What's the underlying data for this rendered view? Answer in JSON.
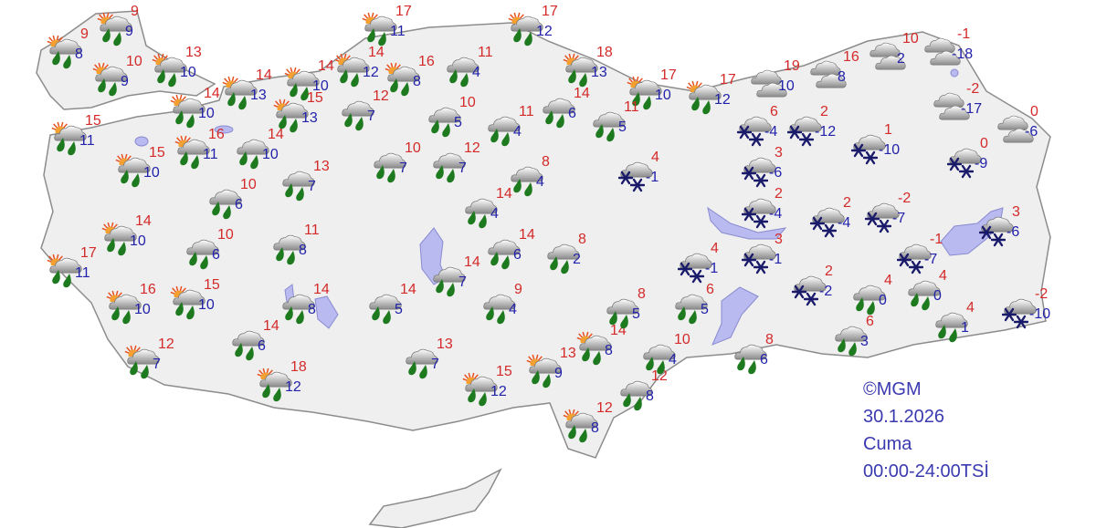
{
  "credit": {
    "source": "©MGM",
    "date": "30.1.2026",
    "day": "Cuma",
    "period": "00:00-24:00TSİ"
  },
  "colors": {
    "max_temp": "#d42a2a",
    "min_temp": "#2222aa",
    "land": "#efefef",
    "lake": "#b8baf0",
    "drop": "#1e7a1e",
    "snow": "#1a1a6a"
  },
  "icon_types": {
    "sun-rain": "partly-cloudy-rain-icon",
    "rain": "cloud-rain-icon",
    "snow": "cloud-snow-icon",
    "cloudy": "cloudy-icon"
  },
  "stations": [
    {
      "type": "sun-rain",
      "max": "9",
      "min": "8"
    },
    {
      "type": "sun-rain",
      "max": "9",
      "min": "9"
    },
    {
      "type": "sun-rain",
      "max": "10",
      "min": "9"
    },
    {
      "type": "sun-rain",
      "max": "13",
      "min": "10"
    },
    {
      "type": "sun-rain",
      "max": "15",
      "min": "11"
    },
    {
      "type": "sun-rain",
      "max": "14",
      "min": "10"
    },
    {
      "type": "sun-rain",
      "max": "14",
      "min": "13"
    },
    {
      "type": "sun-rain",
      "max": "15",
      "min": "10"
    },
    {
      "type": "sun-rain",
      "max": "16",
      "min": "11"
    },
    {
      "type": "rain",
      "max": "14",
      "min": "10"
    },
    {
      "type": "sun-rain",
      "max": "14",
      "min": "10"
    },
    {
      "type": "sun-rain",
      "max": "15",
      "min": "13"
    },
    {
      "type": "sun-rain",
      "max": "14",
      "min": "12"
    },
    {
      "type": "sun-rain",
      "max": "17",
      "min": "11"
    },
    {
      "type": "sun-rain",
      "max": "16",
      "min": "8"
    },
    {
      "type": "rain",
      "max": "12",
      "min": "7"
    },
    {
      "type": "rain",
      "max": "11",
      "min": "4"
    },
    {
      "type": "sun-rain",
      "max": "17",
      "min": "12"
    },
    {
      "type": "sun-rain",
      "max": "18",
      "min": "13"
    },
    {
      "type": "sun-rain",
      "max": "17",
      "min": "10"
    },
    {
      "type": "sun-rain",
      "max": "17",
      "min": "12"
    },
    {
      "type": "rain",
      "max": "10",
      "min": "5"
    },
    {
      "type": "rain",
      "max": "11",
      "min": "4"
    },
    {
      "type": "rain",
      "max": "14",
      "min": "6"
    },
    {
      "type": "rain",
      "max": "11",
      "min": "5"
    },
    {
      "type": "rain",
      "max": "10",
      "min": "7"
    },
    {
      "type": "rain",
      "max": "12",
      "min": "7"
    },
    {
      "type": "rain",
      "max": "8",
      "min": "4"
    },
    {
      "type": "snow",
      "max": "4",
      "min": "-1"
    },
    {
      "type": "rain",
      "max": "10",
      "min": "6"
    },
    {
      "type": "rain",
      "max": "13",
      "min": "7"
    },
    {
      "type": "sun-rain",
      "max": "14",
      "min": "10"
    },
    {
      "type": "rain",
      "max": "10",
      "min": "6"
    },
    {
      "type": "rain",
      "max": "11",
      "min": "8"
    },
    {
      "type": "sun-rain",
      "max": "17",
      "min": "11"
    },
    {
      "type": "sun-rain",
      "max": "16",
      "min": "10"
    },
    {
      "type": "sun-rain",
      "max": "15",
      "min": "10"
    },
    {
      "type": "rain",
      "max": "14",
      "min": "8"
    },
    {
      "type": "rain",
      "max": "14",
      "min": "6"
    },
    {
      "type": "sun-rain",
      "max": "12",
      "min": "7"
    },
    {
      "type": "sun-rain",
      "max": "18",
      "min": "12"
    },
    {
      "type": "rain",
      "max": "14",
      "min": "5"
    },
    {
      "type": "rain",
      "max": "14",
      "min": "4"
    },
    {
      "type": "rain",
      "max": "14",
      "min": "6"
    },
    {
      "type": "rain",
      "max": "8",
      "min": "2"
    },
    {
      "type": "rain",
      "max": "14",
      "min": "7"
    },
    {
      "type": "rain",
      "max": "9",
      "min": "4"
    },
    {
      "type": "rain",
      "max": "13",
      "min": "7"
    },
    {
      "type": "sun-rain",
      "max": "15",
      "min": "12"
    },
    {
      "type": "sun-rain",
      "max": "13",
      "min": "9"
    },
    {
      "type": "sun-rain",
      "max": "14",
      "min": "8"
    },
    {
      "type": "sun-rain",
      "max": "12",
      "min": "8"
    },
    {
      "type": "rain",
      "max": "8",
      "min": "5"
    },
    {
      "type": "rain",
      "max": "12",
      "min": "8"
    },
    {
      "type": "rain",
      "max": "10",
      "min": "4"
    },
    {
      "type": "rain",
      "max": "6",
      "min": "5"
    },
    {
      "type": "rain",
      "max": "8",
      "min": "6"
    },
    {
      "type": "snow",
      "max": "4",
      "min": "-1"
    },
    {
      "type": "snow",
      "max": "3",
      "min": "-1"
    },
    {
      "type": "snow",
      "max": "2",
      "min": "-4"
    },
    {
      "type": "snow",
      "max": "6",
      "min": "-4"
    },
    {
      "type": "snow",
      "max": "2",
      "min": "-12"
    },
    {
      "type": "snow",
      "max": "3",
      "min": "-6"
    },
    {
      "type": "cloudy",
      "max": "19",
      "min": "10"
    },
    {
      "type": "cloudy",
      "max": "16",
      "min": "8"
    },
    {
      "type": "cloudy",
      "max": "10",
      "min": "2"
    },
    {
      "type": "cloudy",
      "max": "-1",
      "min": "-18"
    },
    {
      "type": "cloudy",
      "max": "-2",
      "min": "-17"
    },
    {
      "type": "cloudy",
      "max": "0",
      "min": "-6"
    },
    {
      "type": "snow",
      "max": "1",
      "min": "-10"
    },
    {
      "type": "snow",
      "max": "0",
      "min": "-9"
    },
    {
      "type": "snow",
      "max": "2",
      "min": "-4"
    },
    {
      "type": "snow",
      "max": "-2",
      "min": "-7"
    },
    {
      "type": "snow",
      "max": "-1",
      "min": "-7"
    },
    {
      "type": "snow",
      "max": "3",
      "min": "-6"
    },
    {
      "type": "snow",
      "max": "2",
      "min": "-2"
    },
    {
      "type": "rain",
      "max": "4",
      "min": "0"
    },
    {
      "type": "rain",
      "max": "4",
      "min": "0"
    },
    {
      "type": "rain",
      "max": "6",
      "min": "3"
    },
    {
      "type": "rain",
      "max": "4",
      "min": "1"
    },
    {
      "type": "snow",
      "max": "-2",
      "min": "-10"
    }
  ]
}
